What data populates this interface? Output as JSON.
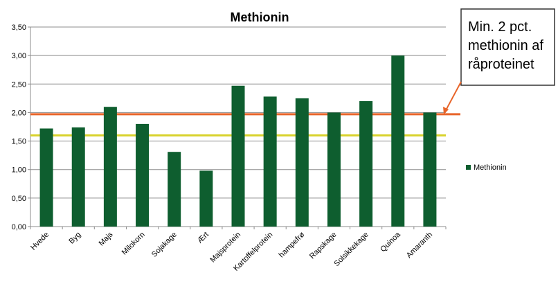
{
  "chart_data": {
    "type": "bar",
    "title": "Methionin",
    "categories": [
      "Hvede",
      "Byg",
      "Majs",
      "Milokorn",
      "Sojakage",
      "Ært",
      "Majsprotein",
      "Kartoffelprotein",
      "hampefrø",
      "Rapskage",
      "Solsikkekage",
      "Quinoa",
      "Amaranth"
    ],
    "series": [
      {
        "name": "Methionin",
        "values": [
          1.72,
          1.74,
          2.1,
          1.8,
          1.31,
          0.98,
          2.47,
          2.28,
          2.25,
          2.0,
          2.2,
          3.0,
          2.0
        ],
        "color": "#0e5e2f"
      }
    ],
    "ylim": [
      0,
      3.5
    ],
    "yticks": [
      "0,00",
      "0,50",
      "1,00",
      "1,50",
      "2,00",
      "2,50",
      "3,00",
      "3,50"
    ],
    "grid": true,
    "legend_position": "right",
    "reference_lines": [
      {
        "value": 1.97,
        "color": "#e8652a"
      },
      {
        "value": 1.6,
        "color": "#d8d22a"
      }
    ],
    "annotation": {
      "lines": [
        "Min. 2 pct.",
        "methionin af",
        "råproteinet"
      ],
      "arrow_color": "#e8652a"
    }
  }
}
